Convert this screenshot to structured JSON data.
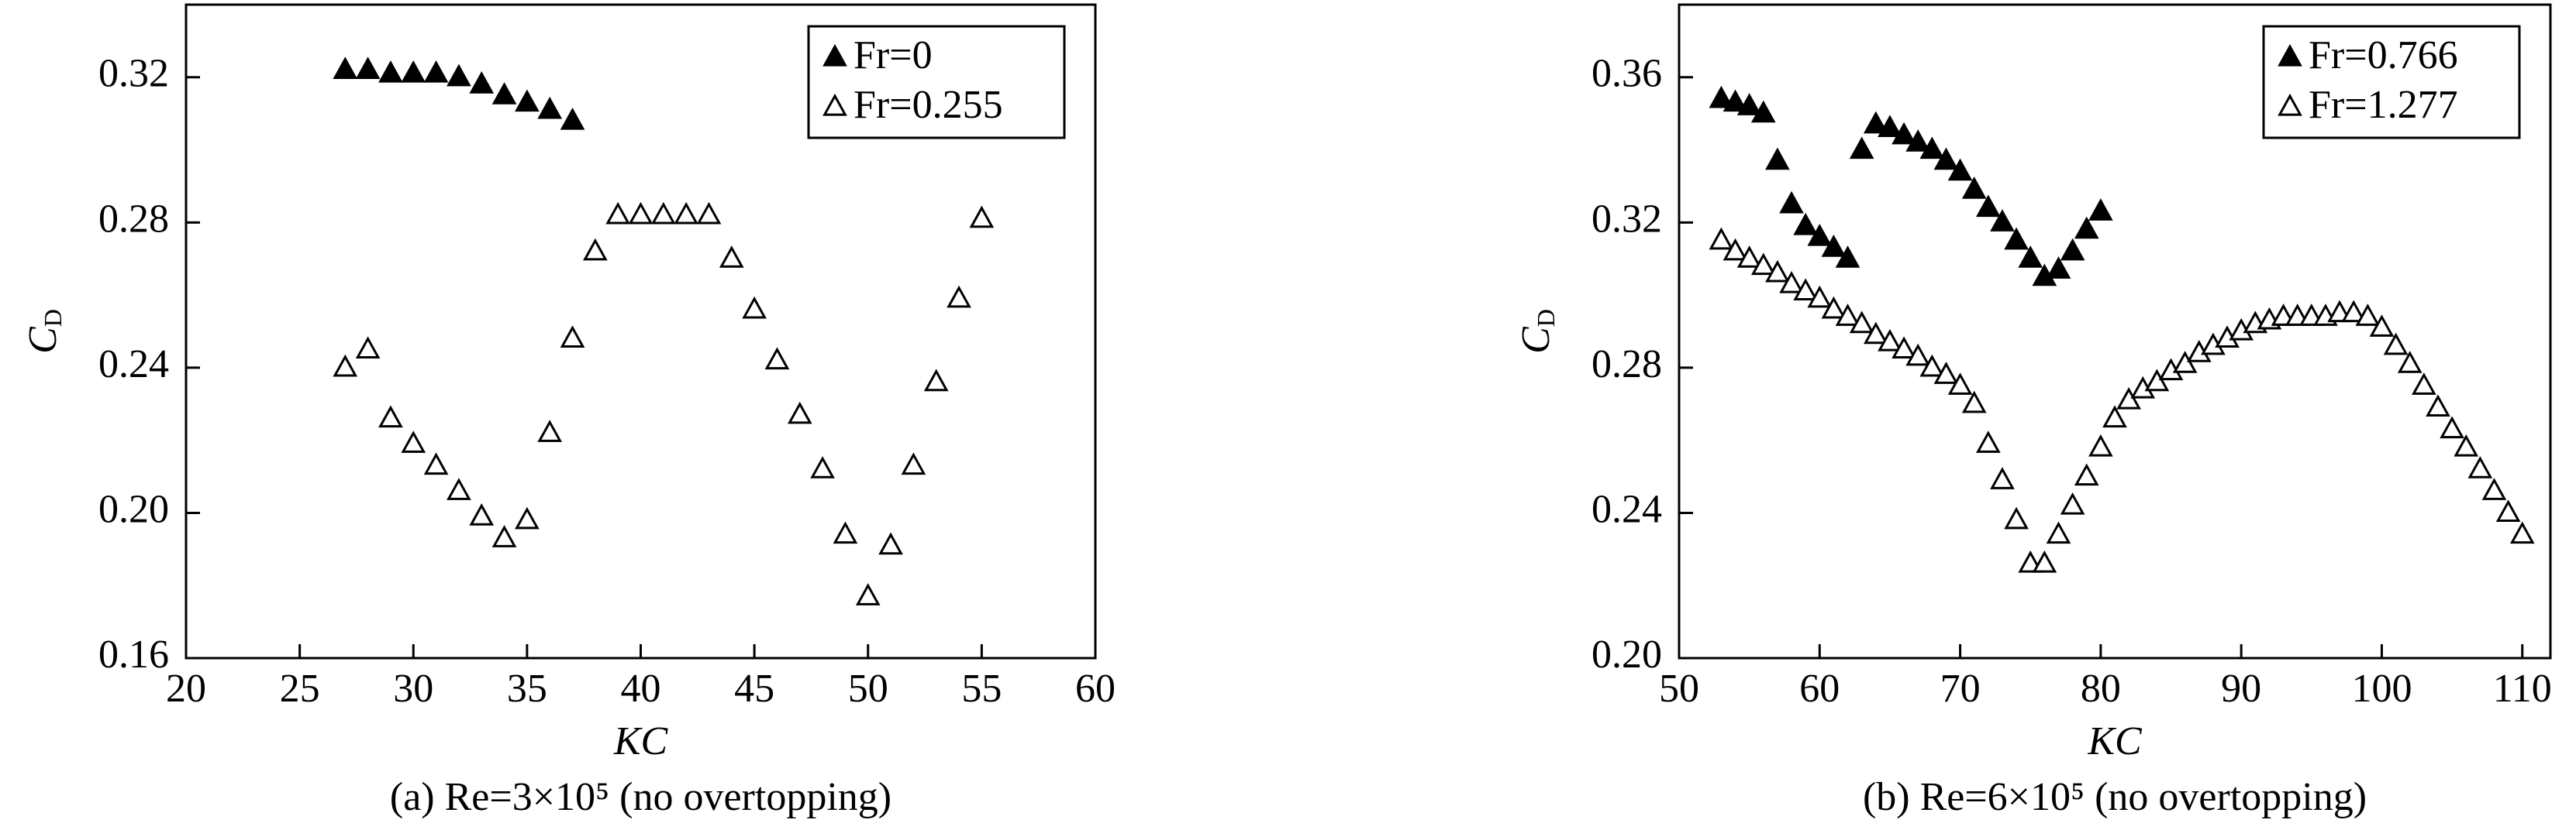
{
  "chart_data": [
    {
      "type": "scatter",
      "xlabel": "KC",
      "ylabel": [
        "C",
        "D"
      ],
      "caption": "(a) Re=3×10⁵ (no overtopping)",
      "xlim": [
        20,
        60
      ],
      "ylim": [
        0.16,
        0.34
      ],
      "xticks": [
        20,
        25,
        30,
        35,
        40,
        45,
        50,
        55,
        60
      ],
      "yticks": [
        0.16,
        {
          "value": 0.2,
          "label": "0.20"
        },
        0.24,
        0.28,
        0.32
      ],
      "legend": "top-right",
      "series": [
        {
          "name": "Fr=0",
          "color": "#000000",
          "marker": "filled",
          "x": [
            27,
            28,
            29,
            30,
            31,
            32,
            33,
            34,
            35,
            36,
            37
          ],
          "values": [
            0.322,
            0.322,
            0.321,
            0.321,
            0.321,
            0.32,
            0.318,
            0.315,
            0.313,
            0.311,
            0.308
          ]
        },
        {
          "name": "Fr=0.255",
          "color": "#000000",
          "marker": "open",
          "x": [
            27,
            28,
            29,
            30,
            31,
            32,
            33,
            34,
            35,
            36,
            37,
            38,
            39,
            40,
            41,
            42,
            43,
            44,
            45,
            46,
            47,
            48,
            49,
            50,
            51,
            52,
            53,
            54,
            55
          ],
          "values": [
            0.24,
            0.245,
            0.226,
            0.219,
            0.213,
            0.206,
            0.199,
            0.193,
            0.198,
            0.222,
            0.248,
            0.272,
            0.282,
            0.282,
            0.282,
            0.282,
            0.282,
            0.27,
            0.256,
            0.242,
            0.227,
            0.212,
            0.194,
            0.177,
            0.191,
            0.213,
            0.236,
            0.259,
            0.281
          ]
        }
      ]
    },
    {
      "type": "scatter",
      "xlabel": "KC",
      "ylabel": [
        "C",
        "D"
      ],
      "caption": "(b) Re=6×10⁵ (no overtopping)",
      "xlim": [
        50,
        112
      ],
      "ylim": [
        0.2,
        0.38
      ],
      "xticks": [
        50,
        60,
        70,
        80,
        90,
        100,
        110
      ],
      "yticks": [
        {
          "value": 0.2,
          "label": "0.20"
        },
        0.24,
        0.28,
        0.32,
        0.36
      ],
      "legend": "top-right",
      "series": [
        {
          "name": "Fr=0.766",
          "color": "#000000",
          "marker": "filled",
          "x": [
            53,
            54,
            55,
            56,
            57,
            58,
            59,
            60,
            61,
            62,
            63,
            64,
            65,
            66,
            67,
            68,
            69,
            70,
            71,
            72,
            73,
            74,
            75,
            76,
            77,
            78,
            79,
            80
          ],
          "values": [
            0.354,
            0.353,
            0.352,
            0.35,
            0.337,
            0.325,
            0.319,
            0.316,
            0.313,
            0.31,
            0.34,
            0.347,
            0.346,
            0.344,
            0.342,
            0.34,
            0.337,
            0.334,
            0.329,
            0.324,
            0.32,
            0.315,
            0.31,
            0.305,
            0.307,
            0.312,
            0.318,
            0.323
          ]
        },
        {
          "name": "Fr=1.277",
          "color": "#000000",
          "marker": "open",
          "x": [
            53,
            54,
            55,
            56,
            57,
            58,
            59,
            60,
            61,
            62,
            63,
            64,
            65,
            66,
            67,
            68,
            69,
            70,
            71,
            72,
            73,
            74,
            75,
            76,
            77,
            78,
            79,
            80,
            81,
            82,
            83,
            84,
            85,
            86,
            87,
            88,
            89,
            90,
            91,
            92,
            93,
            94,
            95,
            96,
            97,
            98,
            99,
            100,
            101,
            102,
            103,
            104,
            105,
            106,
            107,
            108,
            109,
            110
          ],
          "values": [
            0.315,
            0.312,
            0.31,
            0.308,
            0.306,
            0.303,
            0.301,
            0.299,
            0.296,
            0.294,
            0.292,
            0.289,
            0.287,
            0.285,
            0.283,
            0.28,
            0.278,
            0.275,
            0.27,
            0.259,
            0.249,
            0.238,
            0.226,
            0.226,
            0.234,
            0.242,
            0.25,
            0.258,
            0.266,
            0.271,
            0.274,
            0.276,
            0.279,
            0.281,
            0.284,
            0.286,
            0.288,
            0.29,
            0.292,
            0.293,
            0.294,
            0.294,
            0.294,
            0.294,
            0.295,
            0.295,
            0.294,
            0.291,
            0.286,
            0.281,
            0.275,
            0.269,
            0.263,
            0.258,
            0.252,
            0.246,
            0.24,
            0.234
          ]
        }
      ]
    }
  ]
}
